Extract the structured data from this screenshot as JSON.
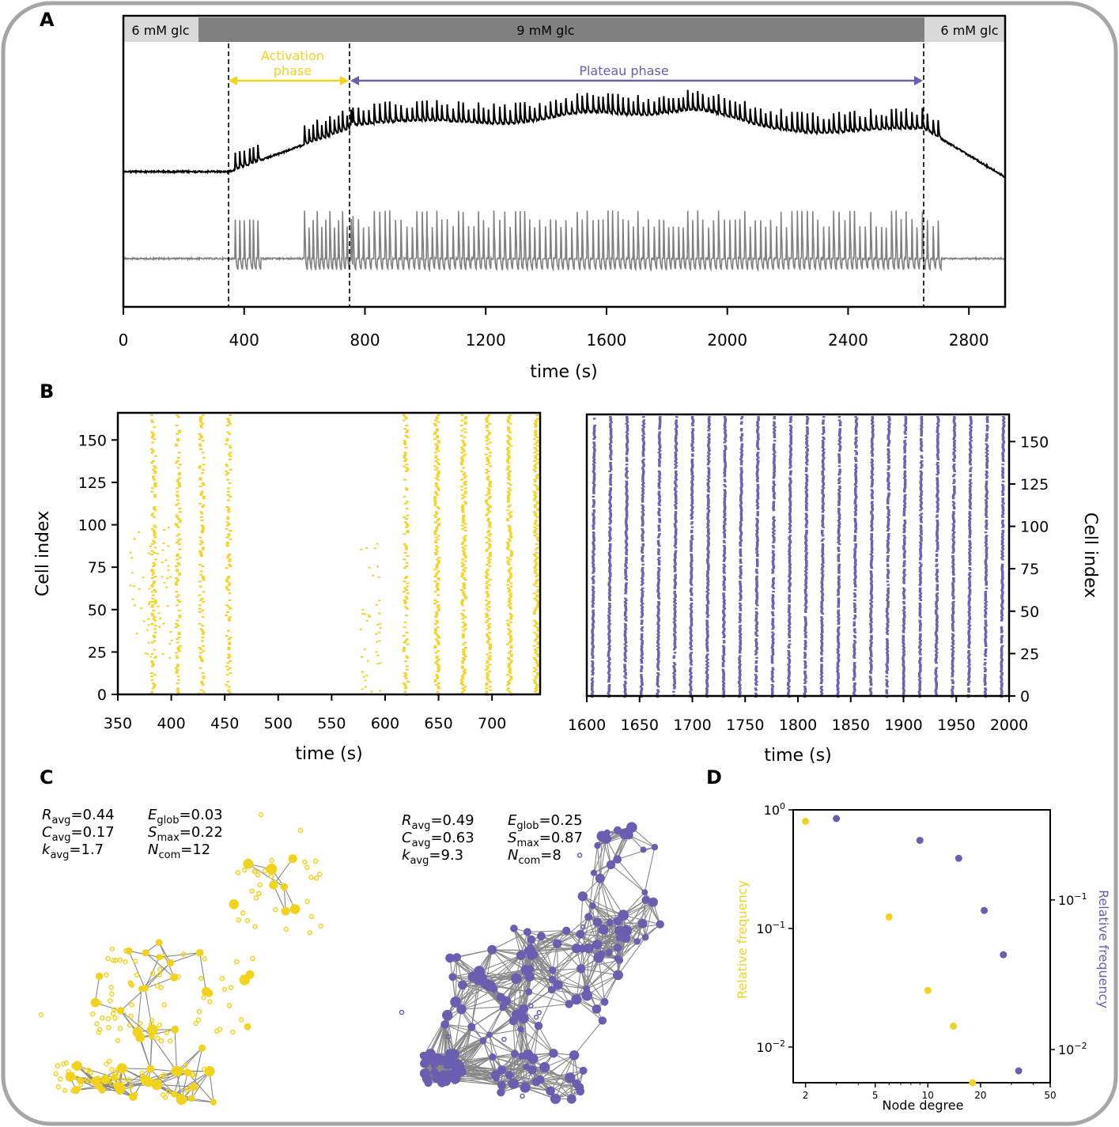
{
  "colors": {
    "yellow": "#f2d31b",
    "purple": "#6a5eb0",
    "black": "#000000",
    "gray": "#808080",
    "edge": "#888888",
    "bar_dark": "#808080",
    "bar_light": "#d9d9d9"
  },
  "panels": {
    "a": "A",
    "b": "B",
    "c": "C",
    "d": "D"
  },
  "chart_data": [
    {
      "id": "A",
      "type": "line",
      "bar": {
        "left": "6 mM glc",
        "middle": "9 mM glc",
        "right": "6 mM glc",
        "switch_times": [
          250,
          2650
        ]
      },
      "annotations": {
        "activation": "Activation\nphase",
        "activation_l1": "Activation",
        "activation_l2": "phase",
        "plateau": "Plateau phase",
        "activation_range": [
          350,
          750
        ],
        "plateau_range": [
          750,
          2650
        ]
      },
      "xlabel": "time (s)",
      "xlim": [
        0,
        2920
      ],
      "xticks": [
        0,
        400,
        800,
        1200,
        1600,
        2000,
        2400,
        2800
      ],
      "xtick_labels": [
        "0",
        "400",
        "800",
        "1200",
        "1600",
        "2000",
        "2400",
        "2800"
      ],
      "vlines": [
        350,
        750,
        2650
      ],
      "series": [
        {
          "name": "raw trace",
          "color": "#000000"
        },
        {
          "name": "detrended trace",
          "color": "#808080"
        }
      ]
    },
    {
      "id": "B-left",
      "type": "scatter",
      "xlabel": "time (s)",
      "ylabel": "Cell index",
      "xlim": [
        350,
        745
      ],
      "ylim": [
        0,
        166
      ],
      "xticks": [
        350,
        400,
        450,
        500,
        550,
        600,
        650,
        700
      ],
      "xtick_labels": [
        "350",
        "400",
        "450",
        "500",
        "550",
        "600",
        "650",
        "700"
      ],
      "yticks": [
        0,
        25,
        50,
        75,
        100,
        125,
        150
      ],
      "ytick_labels": [
        "0",
        "25",
        "50",
        "75",
        "100",
        "125",
        "150"
      ],
      "event_times": [
        382,
        405,
        427,
        452,
        618,
        647,
        672,
        695,
        715,
        740
      ],
      "color": "#f2d31b"
    },
    {
      "id": "B-right",
      "type": "scatter",
      "xlabel": "time (s)",
      "ylabel": "Cell index",
      "xlim": [
        1600,
        2000
      ],
      "ylim": [
        0,
        166
      ],
      "xticks": [
        1600,
        1650,
        1700,
        1750,
        1800,
        1850,
        1900,
        1950,
        2000
      ],
      "xtick_labels": [
        "1600",
        "1650",
        "1700",
        "1750",
        "1800",
        "1850",
        "1900",
        "1950",
        "2000"
      ],
      "yticks": [
        0,
        25,
        50,
        75,
        100,
        125,
        150
      ],
      "ytick_labels": [
        "0",
        "25",
        "50",
        "75",
        "100",
        "125",
        "150"
      ],
      "color": "#6a5eb0"
    },
    {
      "id": "C-left",
      "type": "diagram",
      "metrics": {
        "R_sub": "avg",
        "R_val": "=0.44",
        "C_sub": "avg",
        "C_val": "=0.17",
        "k_sub": "avg",
        "k_val": "=1.7",
        "E_sub": "glob",
        "E_val": "=0.03",
        "S_sub": "max",
        "S_val": "=0.22",
        "N_sub": "com",
        "N_val": "=12"
      },
      "color": "#f2d31b"
    },
    {
      "id": "C-right",
      "type": "diagram",
      "metrics": {
        "R_sub": "avg",
        "R_val": "=0.49",
        "C_sub": "avg",
        "C_val": "=0.63",
        "k_sub": "avg",
        "k_val": "=9.3",
        "E_sub": "glob",
        "E_val": "=0.25",
        "S_sub": "max",
        "S_val": "=0.87",
        "N_sub": "com",
        "N_val": "=8"
      },
      "color": "#6a5eb0"
    },
    {
      "id": "D",
      "type": "scatter",
      "xlabel": "Node degree",
      "ylabel_left": "Relative frequency",
      "ylabel_right": "Relative frequency",
      "xscale": "log",
      "xlim": [
        1.7,
        50
      ],
      "xticks": [
        2,
        5,
        10,
        20,
        50
      ],
      "xtick_labels": [
        "2",
        "5",
        "10",
        "20",
        "50"
      ],
      "ylim_left": [
        0.005,
        1
      ],
      "ylim_right": [
        0.006,
        0.4
      ],
      "yticks_left": [
        1,
        0.1,
        0.01
      ],
      "yticks_right": [
        0.1,
        0.01
      ],
      "tick_labels": {
        "base": "10",
        "left_0": "0",
        "left_m1": "−1",
        "left_m2": "−2",
        "right_m1": "−1",
        "right_m2": "−2"
      },
      "series": [
        {
          "name": "activation",
          "color": "#f2d31b",
          "axis": "left",
          "points": [
            [
              2,
              0.8
            ],
            [
              6,
              0.125
            ],
            [
              10,
              0.03
            ],
            [
              14,
              0.015
            ],
            [
              18,
              0.005
            ]
          ]
        },
        {
          "name": "plateau",
          "color": "#6a5eb0",
          "axis": "right",
          "points": [
            [
              3,
              0.35
            ],
            [
              9,
              0.25
            ],
            [
              15,
              0.19
            ],
            [
              21,
              0.085
            ],
            [
              27,
              0.043
            ],
            [
              33,
              0.0072
            ]
          ]
        }
      ]
    }
  ]
}
